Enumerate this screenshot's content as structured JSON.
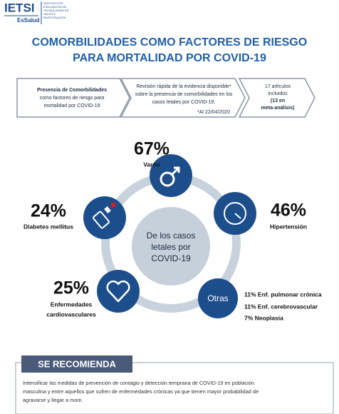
{
  "header": {
    "logo": "IETSI",
    "sublogo": "EsSalud",
    "institute": [
      "INSTITUTO DE",
      "EVALUACIÓN DE",
      "TECNOLOGÍAS EN",
      "SALUD E",
      "INVESTIGACIÓN"
    ]
  },
  "title": [
    "COMORBILIDADES COMO FACTORES DE RIESGO",
    "PARA MORTALIDAD POR COVID-19"
  ],
  "steps": [
    {
      "lines": [
        "Presencia de Comorbilidades",
        "como factores de riesgo para",
        "mortalidad por COVID-19"
      ]
    },
    {
      "lines": [
        "Revisión rápida de la evidencia disponible*",
        "sobre la presencia de comorbilidades en los",
        "casos letales por COVID-19."
      ],
      "note": "*Al 22/04/2020"
    },
    {
      "lines": [
        "17 artículos",
        "incluidos",
        "(13 en",
        "meta-análisis)"
      ]
    }
  ],
  "center": [
    "De los casos",
    "letales por",
    "COVID-19"
  ],
  "items": [
    {
      "percent": "67%",
      "label": [
        "Varón"
      ]
    },
    {
      "percent": "24%",
      "label": [
        "Diabetes mellitus"
      ]
    },
    {
      "percent": "46%",
      "label": [
        "Hipertensión"
      ]
    },
    {
      "percent": "25%",
      "label": [
        "Enfermedades",
        "cardiovasculares"
      ]
    }
  ],
  "others": {
    "label": "Otras",
    "list": [
      "11% Enf. pulmonar crónica",
      "11% Enf. cerebrovascular",
      "7% Neoplasia"
    ]
  },
  "recommendation": {
    "heading": "SE RECOMIENDA",
    "lines": [
      "Intensificar las medidas de prevención de contagio y detección temprana de COVID-19 en población",
      "masculina y entre aquellos que sufren de enfermedades crónicas ya que tienen mayor probabilidad de",
      "agravarse y llegar a morir."
    ]
  }
}
